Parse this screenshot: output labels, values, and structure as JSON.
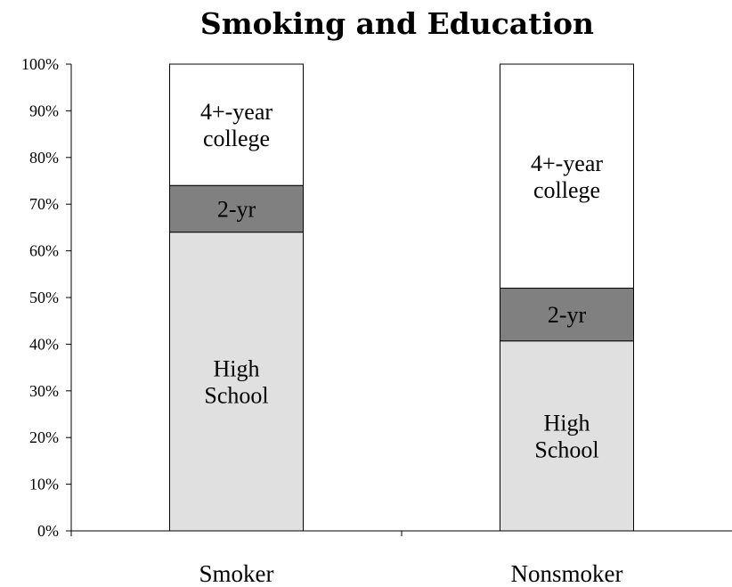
{
  "chart_data": {
    "type": "bar",
    "stacked": true,
    "title": "Smoking and Education",
    "xlabel": "",
    "ylabel": "",
    "ylim": [
      0,
      100
    ],
    "y_unit": "%",
    "y_ticks": [
      "0%",
      "10%",
      "20%",
      "30%",
      "40%",
      "50%",
      "60%",
      "70%",
      "80%",
      "90%",
      "100%"
    ],
    "categories": [
      "Smoker",
      "Nonsmoker"
    ],
    "grid": false,
    "legend": "none",
    "series": [
      {
        "name": "High School",
        "label_lines": [
          "High",
          "School"
        ],
        "color": "#e0e0e0",
        "values": [
          64,
          40.7
        ]
      },
      {
        "name": "2-yr",
        "label_lines": [
          "2-yr"
        ],
        "color": "#808080",
        "values": [
          10,
          11.3
        ]
      },
      {
        "name": "4+-year college",
        "label_lines": [
          "4+-year",
          "college"
        ],
        "color": "#ffffff",
        "values": [
          26,
          48
        ]
      }
    ]
  }
}
